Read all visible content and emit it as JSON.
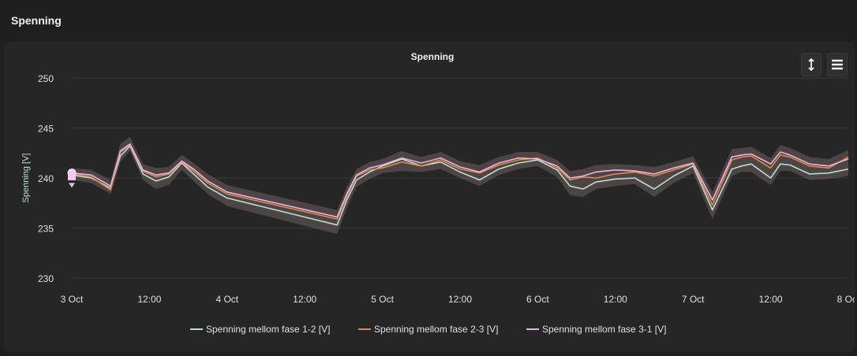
{
  "card": {
    "title": "Spenning"
  },
  "toolbar": {
    "zoom_icon": "vertical-resize-icon",
    "menu_icon": "hamburger-menu-icon"
  },
  "chart_data": {
    "type": "line",
    "title": "Spenning",
    "xlabel": "",
    "ylabel": "Spenning [V]",
    "ylim": [
      230,
      250
    ],
    "yticks": [
      230,
      235,
      240,
      245,
      250
    ],
    "xlim": [
      "2023-10-03T00:00",
      "2023-10-08T00:00"
    ],
    "xticks": [
      "2023-10-03T00:00",
      "2023-10-03T12:00",
      "2023-10-04T00:00",
      "2023-10-04T12:00",
      "2023-10-05T00:00",
      "2023-10-05T12:00",
      "2023-10-06T00:00",
      "2023-10-06T12:00",
      "2023-10-07T00:00",
      "2023-10-07T12:00",
      "2023-10-08T00:00"
    ],
    "xtick_labels": [
      "3 Oct",
      "12:00",
      "4 Oct",
      "12:00",
      "5 Oct",
      "12:00",
      "6 Oct",
      "12:00",
      "7 Oct",
      "12:00",
      "8 Oct"
    ],
    "grid": true,
    "legend_position": "bottom",
    "band_color": "#6e5c5c",
    "x": [
      "2023-10-03T00:00",
      "2023-10-03T03:00",
      "2023-10-03T06:00",
      "2023-10-03T07:30",
      "2023-10-03T09:00",
      "2023-10-03T11:00",
      "2023-10-03T13:00",
      "2023-10-03T15:00",
      "2023-10-03T17:00",
      "2023-10-03T19:00",
      "2023-10-03T21:00",
      "2023-10-04T00:00",
      "2023-10-04T17:00",
      "2023-10-04T18:30",
      "2023-10-04T20:00",
      "2023-10-04T22:00",
      "2023-10-05T00:00",
      "2023-10-05T03:00",
      "2023-10-05T06:00",
      "2023-10-05T09:00",
      "2023-10-05T12:00",
      "2023-10-05T15:00",
      "2023-10-05T18:00",
      "2023-10-05T21:00",
      "2023-10-06T00:00",
      "2023-10-06T03:00",
      "2023-10-06T05:00",
      "2023-10-06T07:00",
      "2023-10-06T09:00",
      "2023-10-06T12:00",
      "2023-10-06T15:00",
      "2023-10-06T18:00",
      "2023-10-06T21:00",
      "2023-10-07T00:00",
      "2023-10-07T03:00",
      "2023-10-07T06:00",
      "2023-10-07T07:30",
      "2023-10-07T09:00",
      "2023-10-07T12:00",
      "2023-10-07T13:30",
      "2023-10-07T15:00",
      "2023-10-07T18:00",
      "2023-10-07T21:00",
      "2023-10-08T00:00"
    ],
    "series": [
      {
        "name": "Spenning mellom fase 1-2 [V]",
        "color": "#b8e0d2",
        "values": [
          240.3,
          240.0,
          239.0,
          242.2,
          243.2,
          240.4,
          239.7,
          240.1,
          241.5,
          240.3,
          239.1,
          238.0,
          235.3,
          237.8,
          239.8,
          240.6,
          241.2,
          241.9,
          241.2,
          241.6,
          240.6,
          239.8,
          240.9,
          241.5,
          241.8,
          240.8,
          239.2,
          238.9,
          239.6,
          239.9,
          240.0,
          238.9,
          240.2,
          241.2,
          236.8,
          240.9,
          241.2,
          241.4,
          240.0,
          241.4,
          241.3,
          240.4,
          240.5,
          240.9
        ]
      },
      {
        "name": "Spenning mellom fase 2-3 [V]",
        "color": "#e0874e",
        "values": [
          240.4,
          240.1,
          238.8,
          242.6,
          243.3,
          240.7,
          240.1,
          240.4,
          241.6,
          240.6,
          239.5,
          238.4,
          235.9,
          238.2,
          240.2,
          240.8,
          241.0,
          241.6,
          241.2,
          241.8,
          240.9,
          240.5,
          241.3,
          241.8,
          242.0,
          241.0,
          239.8,
          240.1,
          240.0,
          240.4,
          240.6,
          240.2,
          240.8,
          241.4,
          237.3,
          241.8,
          242.1,
          242.2,
          241.0,
          242.3,
          242.1,
          241.2,
          241.0,
          242.1
        ]
      },
      {
        "name": "Spenning mellom fase 3-1 [V]",
        "color": "#e8b4e8",
        "values": [
          240.5,
          240.3,
          239.2,
          242.7,
          243.4,
          240.8,
          240.3,
          240.5,
          241.7,
          240.8,
          239.7,
          238.6,
          236.1,
          238.4,
          240.3,
          241.0,
          241.3,
          242.0,
          241.5,
          242.0,
          241.1,
          240.6,
          241.5,
          242.0,
          241.9,
          241.2,
          240.0,
          240.2,
          240.6,
          240.8,
          240.7,
          240.4,
          241.0,
          241.5,
          237.8,
          242.1,
          242.3,
          242.4,
          241.4,
          242.6,
          242.3,
          241.4,
          241.2,
          241.9
        ]
      }
    ],
    "band_lower": [
      239.8,
      239.5,
      238.4,
      241.6,
      242.7,
      239.8,
      238.9,
      239.3,
      240.8,
      239.6,
      238.4,
      237.2,
      234.4,
      237.0,
      239.1,
      239.9,
      240.5,
      240.7,
      240.6,
      240.9,
      240.0,
      239.2,
      240.3,
      240.9,
      241.2,
      240.1,
      238.3,
      238.1,
      238.9,
      239.2,
      239.4,
      238.1,
      239.5,
      240.5,
      235.9,
      240.2,
      240.6,
      240.6,
      239.3,
      240.7,
      240.7,
      239.8,
      239.9,
      240.2
    ],
    "band_upper": [
      241.0,
      240.8,
      239.8,
      243.4,
      244.1,
      241.4,
      241.0,
      241.1,
      242.3,
      241.4,
      240.4,
      239.3,
      236.8,
      239.1,
      240.9,
      241.6,
      241.9,
      242.7,
      242.1,
      242.6,
      241.7,
      241.3,
      242.1,
      242.6,
      242.6,
      241.8,
      240.7,
      240.9,
      241.3,
      241.4,
      241.3,
      241.1,
      241.6,
      242.2,
      238.6,
      242.9,
      243.0,
      243.1,
      242.0,
      243.3,
      243.0,
      242.1,
      241.9,
      242.8
    ]
  }
}
